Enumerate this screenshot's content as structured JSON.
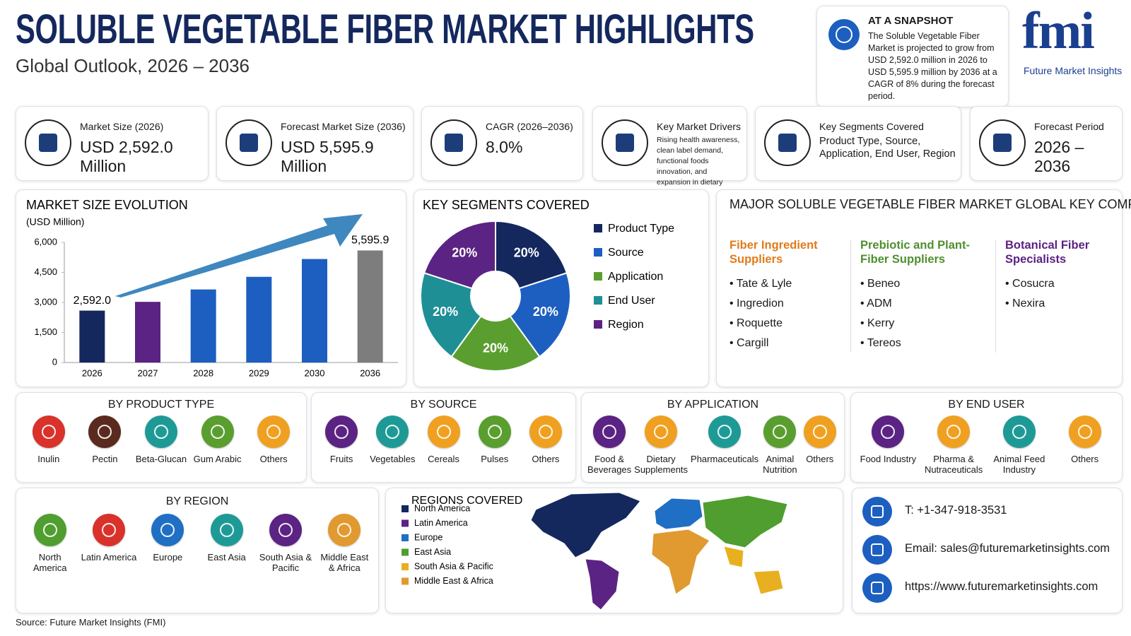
{
  "header": {
    "title": "SOLUBLE VEGETABLE FIBER MARKET HIGHLIGHTS",
    "subtitle": "Global Outlook, 2026 – 2036"
  },
  "snapshot": {
    "title": "AT A SNAPSHOT",
    "text": "The Soluble Vegetable Fiber Market is projected to grow from USD 2,592.0 million in 2026 to USD 5,595.9 million by 2036 at a CAGR of 8% during the forecast period."
  },
  "logo": {
    "mark": "fmi",
    "name": "Future Market Insights"
  },
  "kpis": [
    {
      "label": "Market Size (2026)",
      "value": "USD 2,592.0 Million"
    },
    {
      "label": "Forecast Market Size (2036)",
      "value": "USD 5,595.9 Million"
    },
    {
      "label": "CAGR (2026–2036)",
      "value": "8.0%"
    },
    {
      "label": "Key Market Drivers",
      "value": "Rising health awareness, clean label demand, functional foods innovation, and expansion in dietary supplements"
    },
    {
      "label": "Key Segments Covered",
      "value": "Product Type, Source, Application, End User, Region"
    },
    {
      "label": "Forecast Period",
      "value": "2026 – 2036"
    }
  ],
  "chart_data": [
    {
      "type": "bar",
      "title": "MARKET SIZE EVOLUTION",
      "ylabel": "(USD Million)",
      "categories": [
        "2026",
        "2027",
        "2028",
        "2029",
        "2030",
        "2036"
      ],
      "values": [
        2592.0,
        3030,
        3650,
        4280,
        5170,
        5595.9
      ],
      "value_labels": [
        "2,592.0",
        null,
        null,
        null,
        null,
        "5,595.9"
      ],
      "colors": [
        "#14285e",
        "#5b2383",
        "#1d5fc0",
        "#1d5fc0",
        "#1d5fc0",
        "#7d7d7d"
      ],
      "ylim": [
        0,
        6000
      ],
      "yticks": [
        0,
        {
          "value": 1500,
          "label": "1,500"
        },
        {
          "value": 3000,
          "label": "3,000"
        },
        {
          "value": 4500,
          "label": "4,500"
        },
        {
          "value": 6000,
          "label": "6,000"
        }
      ],
      "grid": false
    },
    {
      "type": "pie",
      "title": "KEY SEGMENTS COVERED",
      "categories": [
        "Product Type",
        "Source",
        "Application",
        "End User",
        "Region"
      ],
      "values": [
        20,
        20,
        20,
        20,
        20
      ],
      "value_labels": [
        "20%",
        "20%",
        "20%",
        "20%",
        "20%"
      ],
      "colors": [
        "#14285e",
        "#1d5fc0",
        "#5a9e2f",
        "#1f8f96",
        "#5b2383"
      ],
      "donut": true
    }
  ],
  "companies": {
    "title": "MAJOR SOLUBLE VEGETABLE FIBER MARKET GLOBAL KEY COMPANIES",
    "groups": [
      {
        "name": "Fiber Ingredient Suppliers",
        "color": "#e07b1a",
        "items": [
          "Tate & Lyle",
          "Ingredion",
          "Roquette",
          "Cargill"
        ]
      },
      {
        "name": "Prebiotic and Plant-Fiber Suppliers",
        "color": "#4f8f2f",
        "items": [
          "Beneo",
          "ADM",
          "Kerry",
          "Tereos"
        ]
      },
      {
        "name": "Botanical Fiber Specialists",
        "color": "#5b2383",
        "items": [
          "Cosucra",
          "Nexira"
        ]
      }
    ]
  },
  "segments": [
    {
      "title": "BY PRODUCT TYPE",
      "items": [
        "Inulin",
        "Pectin",
        "Beta-Glucan",
        "Gum Arabic",
        "Others"
      ]
    },
    {
      "title": "BY SOURCE",
      "items": [
        "Fruits",
        "Vegetables",
        "Cereals",
        "Pulses",
        "Others"
      ]
    },
    {
      "title": "BY APPLICATION",
      "items": [
        "Food & Beverages",
        "Dietary Supplements",
        "Pharmaceuticals",
        "Animal Nutrition",
        "Others"
      ]
    },
    {
      "title": "BY END USER",
      "items": [
        "Food Industry",
        "Pharma & Nutraceuticals",
        "Animal Feed Industry",
        "Others"
      ]
    }
  ],
  "by_region": {
    "title": "BY REGION",
    "items": [
      "North America",
      "Latin America",
      "Europe",
      "East Asia",
      "South Asia & Pacific",
      "Middle East & Africa"
    ]
  },
  "regions_covered": {
    "title": "REGIONS COVERED",
    "items": [
      {
        "name": "North America",
        "color": "#14285e"
      },
      {
        "name": "Latin America",
        "color": "#5b2383"
      },
      {
        "name": "Europe",
        "color": "#1f6fc4"
      },
      {
        "name": "East Asia",
        "color": "#4f9e2f"
      },
      {
        "name": "South Asia & Pacific",
        "color": "#e8b020"
      },
      {
        "name": "Middle East & Africa",
        "color": "#e09a30"
      }
    ]
  },
  "contact": {
    "phone": "T: +1-347-918-3531",
    "email": "Email: sales@futuremarketinsights.com",
    "web": "https://www.futuremarketinsights.com"
  },
  "source": "Source: Future Market Insights (FMI)"
}
